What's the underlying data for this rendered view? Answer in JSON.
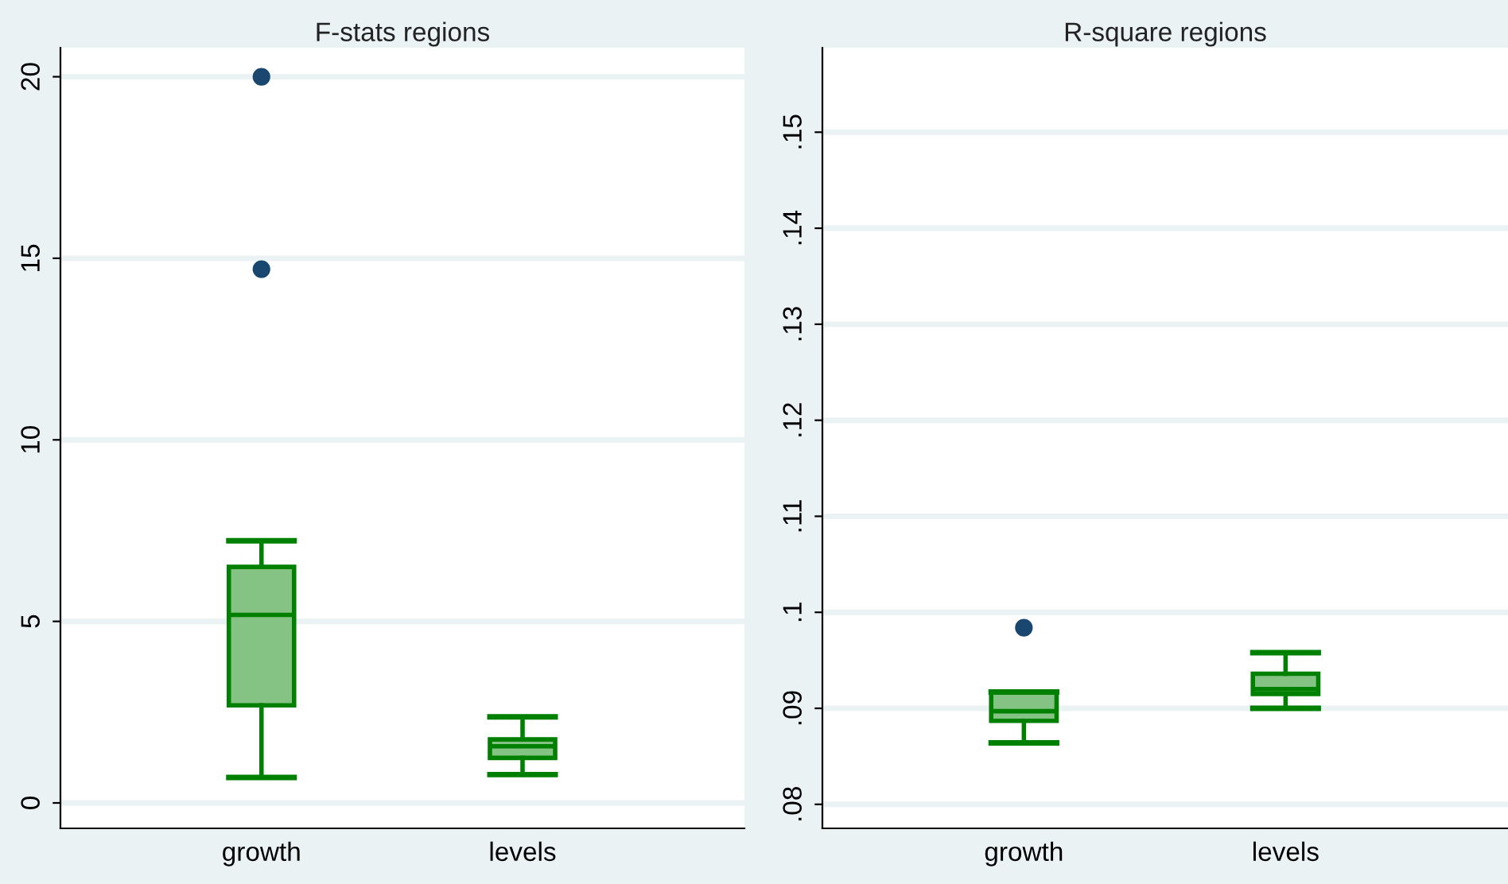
{
  "chart_data": [
    {
      "type": "box",
      "title": "F-stats regions",
      "categories": [
        "growth",
        "levels"
      ],
      "ylim": [
        -0.7,
        20.8
      ],
      "yticks": [
        0,
        5,
        10,
        15,
        20
      ],
      "grid": "y",
      "color": "#008000",
      "boxes": [
        {
          "low": 0.7,
          "q1": 2.69,
          "median": 5.18,
          "q3": 6.5,
          "high": 7.22,
          "outliers": [
            14.7,
            20.0
          ]
        },
        {
          "low": 0.78,
          "q1": 1.24,
          "median": 1.56,
          "q3": 1.75,
          "high": 2.37
        }
      ]
    },
    {
      "type": "box",
      "title": "R-square regions",
      "categories": [
        "growth",
        "levels"
      ],
      "ylim": [
        0.0775,
        0.1588
      ],
      "yticks": [
        {
          "value": 0.08,
          "label": ".08"
        },
        {
          "value": 0.09,
          "label": ".09"
        },
        {
          "value": 0.1,
          "label": ".1"
        },
        {
          "value": 0.11,
          "label": ".11"
        },
        {
          "value": 0.12,
          "label": ".12"
        },
        {
          "value": 0.13,
          "label": ".13"
        },
        {
          "value": 0.14,
          "label": ".14"
        },
        {
          "value": 0.15,
          "label": ".15"
        }
      ],
      "grid": "y",
      "color": "#008000",
      "boxes": [
        {
          "low": 0.0864,
          "q1": 0.0887,
          "median": 0.0897,
          "q3": 0.0917,
          "high": 0.0917,
          "outliers": [
            0.0984
          ]
        },
        {
          "low": 0.09,
          "q1": 0.0915,
          "median": 0.092,
          "q3": 0.0936,
          "high": 0.0958
        }
      ]
    }
  ]
}
